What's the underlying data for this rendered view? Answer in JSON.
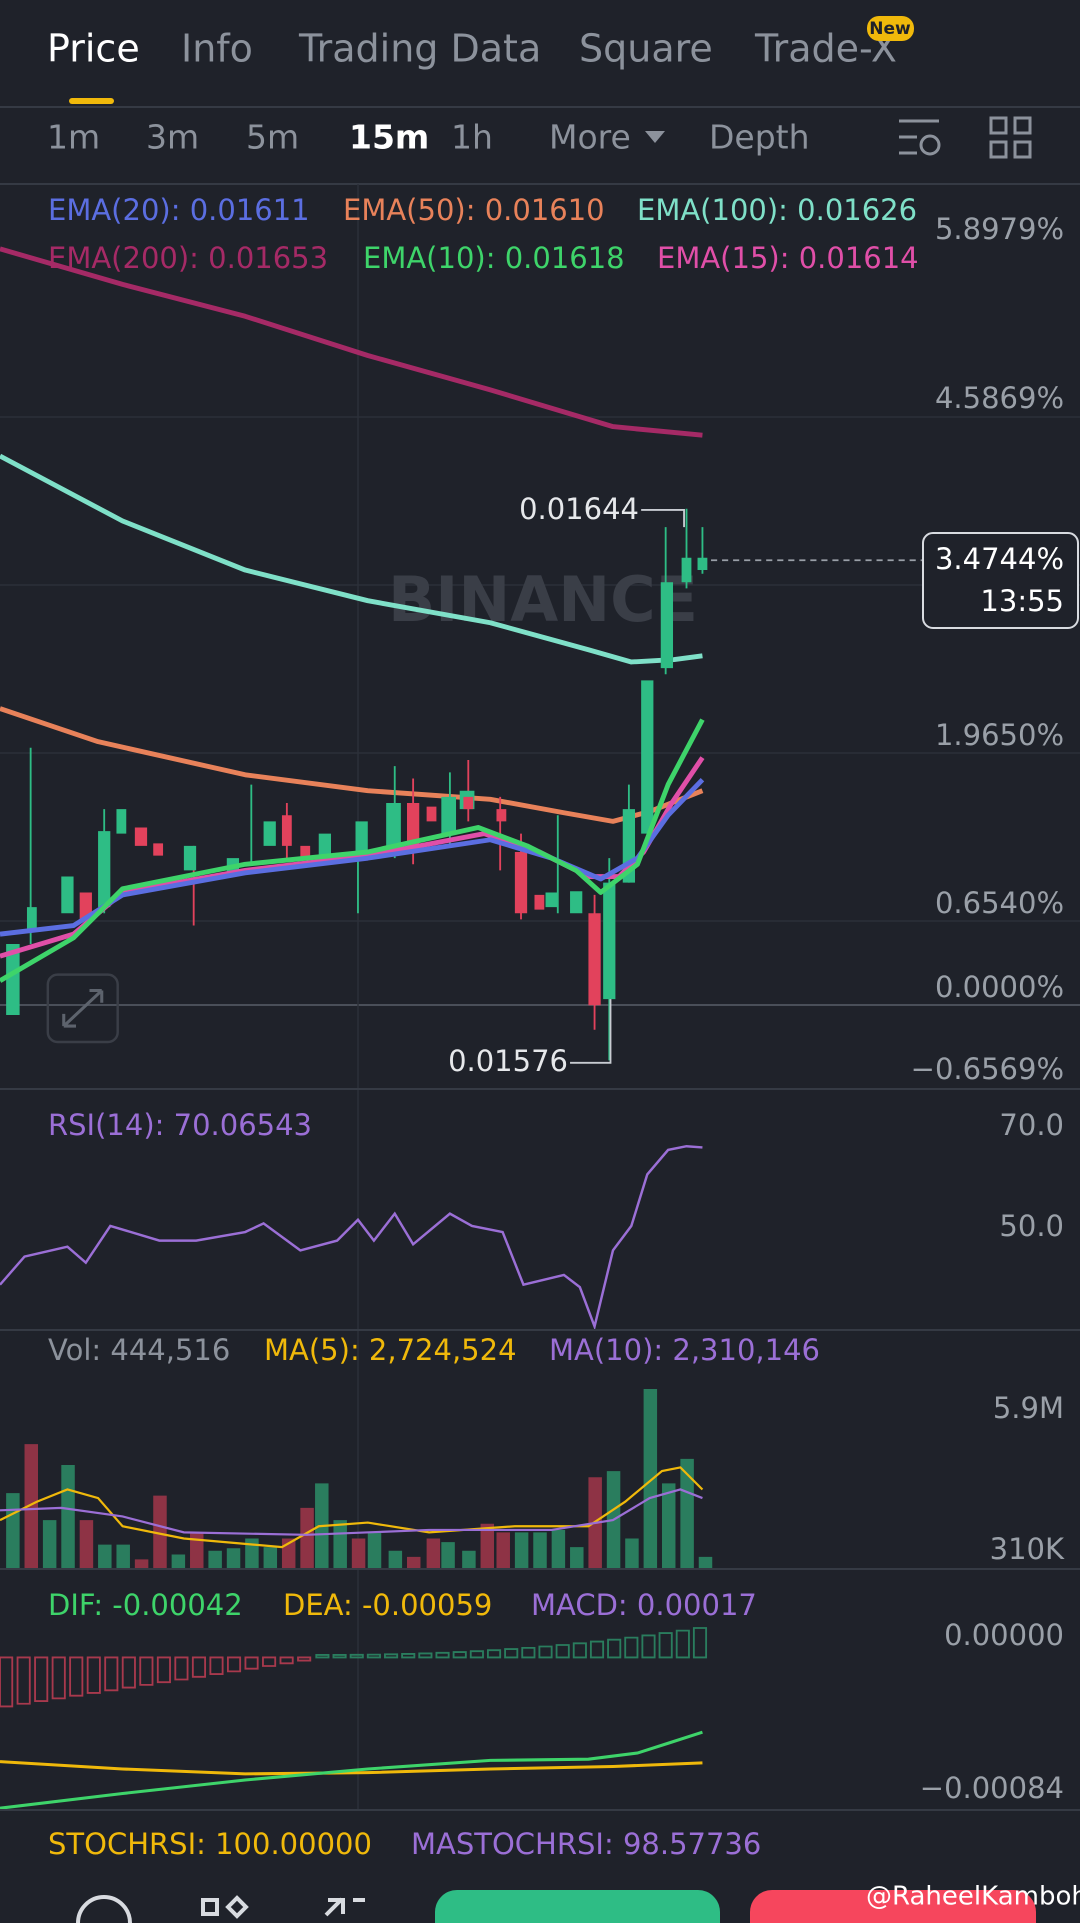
{
  "tabs": [
    "Price",
    "Info",
    "Trading Data",
    "Square",
    "Trade-X"
  ],
  "badge": "New",
  "timeframes": [
    "1m",
    "3m",
    "5m",
    "15m",
    "1h"
  ],
  "more": "More",
  "depth": "Depth",
  "ema_labels": [
    "EMA(20): 0.01611",
    "EMA(50): 0.01610",
    "EMA(100): 0.01626",
    "EMA(200): 0.01653",
    "EMA(10): 0.01618",
    "EMA(15): 0.01614"
  ],
  "price_axis": [
    "5.8979%",
    "4.5869%",
    "1.9650%",
    "0.6540%",
    "0.0000%",
    "−0.6569%"
  ],
  "price_box": {
    "value": "3.4744%",
    "time": "13:55"
  },
  "high_label": "0.01644",
  "low_label": "0.01576",
  "watermark": "BINANCE",
  "rsi": {
    "label": "RSI(14): 70.06543",
    "axis": [
      "70.0",
      "50.0"
    ]
  },
  "volume": {
    "labels": [
      "Vol: 444,516",
      "MA(5): 2,724,524",
      "MA(10): 2,310,146"
    ],
    "axis": [
      "5.9M",
      "310K"
    ]
  },
  "macd": {
    "labels": [
      "DIF: -0.00042",
      "DEA: -0.00059",
      "MACD: 0.00017"
    ],
    "axis": [
      "0.00000",
      "−0.00084"
    ]
  },
  "stochrsi": {
    "labels": [
      "STOCHRSI: 100.00000",
      "MASTOCHRSI: 98.57736"
    ]
  },
  "credit": "@RaheelKamboh"
}
